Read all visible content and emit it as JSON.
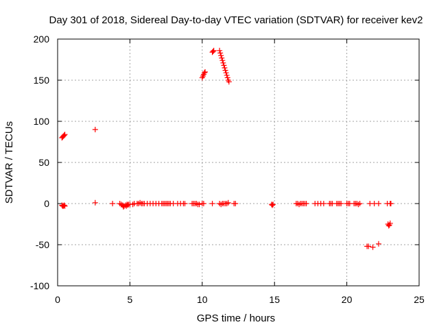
{
  "chart_data": {
    "type": "scatter",
    "title": "Day 301 of 2018, Sidereal Day-to-day VTEC variation (SDTVAR) for receiver kev2",
    "xlabel": "GPS time / hours",
    "ylabel": "SDTVAR / TECUs",
    "xlim": [
      0,
      25
    ],
    "ylim": [
      -100,
      200
    ],
    "xticks": [
      0,
      5,
      10,
      15,
      20,
      25
    ],
    "yticks": [
      -100,
      -50,
      0,
      50,
      100,
      150,
      200
    ],
    "grid": true,
    "marker": "plus",
    "series": [
      {
        "name": "SDTVAR",
        "color": "#ff0000",
        "points": [
          [
            0.3,
            80
          ],
          [
            0.35,
            81
          ],
          [
            0.4,
            82
          ],
          [
            0.45,
            83
          ],
          [
            0.5,
            84
          ],
          [
            0.3,
            -2
          ],
          [
            0.35,
            -3
          ],
          [
            0.4,
            -3
          ],
          [
            0.45,
            -2
          ],
          [
            0.5,
            -3
          ],
          [
            2.6,
            90
          ],
          [
            2.6,
            1
          ],
          [
            3.8,
            0
          ],
          [
            4.3,
            0
          ],
          [
            4.4,
            -1
          ],
          [
            4.5,
            -2
          ],
          [
            4.55,
            -4
          ],
          [
            4.6,
            -3
          ],
          [
            4.7,
            -2
          ],
          [
            4.75,
            -3
          ],
          [
            4.8,
            -1
          ],
          [
            4.85,
            -2
          ],
          [
            4.9,
            -1
          ],
          [
            5.0,
            -1
          ],
          [
            5.2,
            -1
          ],
          [
            5.3,
            0
          ],
          [
            5.5,
            0
          ],
          [
            5.6,
            0
          ],
          [
            5.7,
            1
          ],
          [
            5.8,
            0
          ],
          [
            5.9,
            0
          ],
          [
            6.0,
            0
          ],
          [
            6.2,
            0
          ],
          [
            6.4,
            0
          ],
          [
            6.6,
            0
          ],
          [
            6.8,
            0
          ],
          [
            7.0,
            0
          ],
          [
            7.2,
            0
          ],
          [
            7.3,
            0
          ],
          [
            7.4,
            0
          ],
          [
            7.5,
            0
          ],
          [
            7.6,
            0
          ],
          [
            7.7,
            0
          ],
          [
            7.8,
            0
          ],
          [
            8.0,
            0
          ],
          [
            8.3,
            0
          ],
          [
            8.5,
            0
          ],
          [
            8.7,
            0
          ],
          [
            8.8,
            0
          ],
          [
            9.3,
            0
          ],
          [
            9.4,
            0
          ],
          [
            9.5,
            0
          ],
          [
            9.6,
            0
          ],
          [
            9.7,
            -1
          ],
          [
            9.8,
            -1
          ],
          [
            10.0,
            153
          ],
          [
            10.05,
            155
          ],
          [
            10.1,
            157
          ],
          [
            10.15,
            159
          ],
          [
            10.2,
            160
          ],
          [
            10.0,
            0
          ],
          [
            10.1,
            0
          ],
          [
            10.7,
            184
          ],
          [
            10.75,
            185
          ],
          [
            10.8,
            186
          ],
          [
            10.7,
            0
          ],
          [
            11.2,
            186
          ],
          [
            11.25,
            183
          ],
          [
            11.3,
            180
          ],
          [
            11.35,
            177
          ],
          [
            11.4,
            174
          ],
          [
            11.45,
            171
          ],
          [
            11.5,
            168
          ],
          [
            11.55,
            165
          ],
          [
            11.6,
            162
          ],
          [
            11.65,
            159
          ],
          [
            11.7,
            156
          ],
          [
            11.75,
            153
          ],
          [
            11.8,
            150
          ],
          [
            11.85,
            148
          ],
          [
            11.2,
            0
          ],
          [
            11.3,
            -1
          ],
          [
            11.4,
            0
          ],
          [
            11.5,
            0
          ],
          [
            11.6,
            0
          ],
          [
            11.7,
            0
          ],
          [
            11.8,
            1
          ],
          [
            12.2,
            0
          ],
          [
            12.3,
            0
          ],
          [
            14.8,
            -1
          ],
          [
            14.85,
            -2
          ],
          [
            14.9,
            -1
          ],
          [
            16.5,
            0
          ],
          [
            16.6,
            0
          ],
          [
            16.7,
            -1
          ],
          [
            16.8,
            0
          ],
          [
            16.9,
            0
          ],
          [
            17.0,
            0
          ],
          [
            17.1,
            0
          ],
          [
            17.2,
            0
          ],
          [
            17.8,
            0
          ],
          [
            18.0,
            0
          ],
          [
            18.2,
            0
          ],
          [
            18.4,
            0
          ],
          [
            18.8,
            0
          ],
          [
            18.9,
            0
          ],
          [
            19.0,
            0
          ],
          [
            19.3,
            0
          ],
          [
            19.4,
            0
          ],
          [
            19.5,
            0
          ],
          [
            19.6,
            0
          ],
          [
            20.0,
            0
          ],
          [
            20.1,
            0
          ],
          [
            20.2,
            0
          ],
          [
            20.5,
            0
          ],
          [
            20.6,
            0
          ],
          [
            20.7,
            0
          ],
          [
            20.8,
            -1
          ],
          [
            20.9,
            0
          ],
          [
            21.4,
            -52
          ],
          [
            21.5,
            -52
          ],
          [
            21.6,
            0
          ],
          [
            21.8,
            -53
          ],
          [
            21.9,
            0
          ],
          [
            22.2,
            -49
          ],
          [
            22.2,
            0
          ],
          [
            22.8,
            0
          ],
          [
            22.85,
            -25
          ],
          [
            22.9,
            -27
          ],
          [
            22.95,
            -26
          ],
          [
            23.0,
            -24
          ],
          [
            23.0,
            0
          ],
          [
            23.05,
            0
          ]
        ]
      }
    ]
  }
}
